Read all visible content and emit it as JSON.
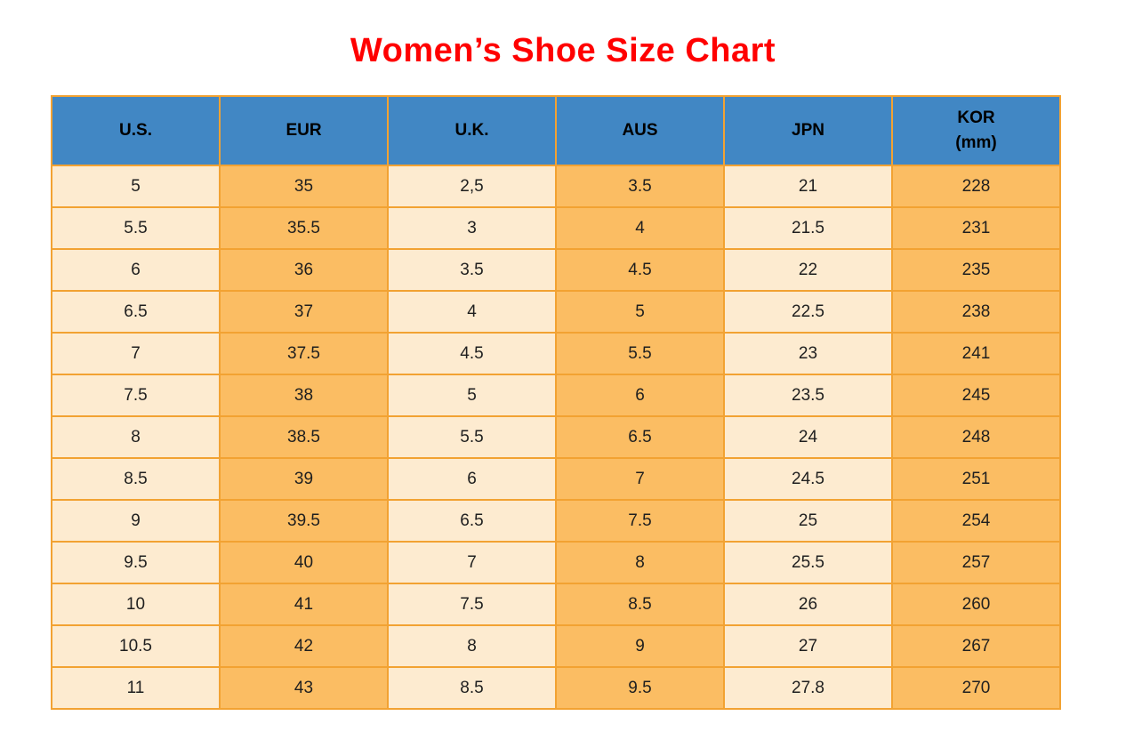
{
  "title": "Women’s Shoe Size Chart",
  "colors": {
    "title": "#ff0000",
    "header_bg": "#4187c4",
    "header_text": "#000000",
    "column_light": "#fdebd0",
    "column_dark": "#fbbd63",
    "grid_border": "#f2a232",
    "cell_text": "#1f1f1f",
    "page_bg": "#ffffff"
  },
  "table": {
    "headers": [
      {
        "label": "U.S.",
        "sub": ""
      },
      {
        "label": "EUR",
        "sub": ""
      },
      {
        "label": "U.K.",
        "sub": ""
      },
      {
        "label": "AUS",
        "sub": ""
      },
      {
        "label": "JPN",
        "sub": ""
      },
      {
        "label": "KOR",
        "sub": "(mm)"
      }
    ],
    "rows": [
      [
        "5",
        "35",
        "2,5",
        "3.5",
        "21",
        "228"
      ],
      [
        "5.5",
        "35.5",
        "3",
        "4",
        "21.5",
        "231"
      ],
      [
        "6",
        "36",
        "3.5",
        "4.5",
        "22",
        "235"
      ],
      [
        "6.5",
        "37",
        "4",
        "5",
        "22.5",
        "238"
      ],
      [
        "7",
        "37.5",
        "4.5",
        "5.5",
        "23",
        "241"
      ],
      [
        "7.5",
        "38",
        "5",
        "6",
        "23.5",
        "245"
      ],
      [
        "8",
        "38.5",
        "5.5",
        "6.5",
        "24",
        "248"
      ],
      [
        "8.5",
        "39",
        "6",
        "7",
        "24.5",
        "251"
      ],
      [
        "9",
        "39.5",
        "6.5",
        "7.5",
        "25",
        "254"
      ],
      [
        "9.5",
        "40",
        "7",
        "8",
        "25.5",
        "257"
      ],
      [
        "10",
        "41",
        "7.5",
        "8.5",
        "26",
        "260"
      ],
      [
        "10.5",
        "42",
        "8",
        "9",
        "27",
        "267"
      ],
      [
        "11",
        "43",
        "8.5",
        "9.5",
        "27.8",
        "270"
      ]
    ]
  },
  "chart_data": {
    "type": "table",
    "title": "Women’s Shoe Size Chart",
    "columns": [
      "U.S.",
      "EUR",
      "U.K.",
      "AUS",
      "JPN",
      "KOR (mm)"
    ],
    "rows": [
      [
        "5",
        "35",
        "2,5",
        "3.5",
        "21",
        "228"
      ],
      [
        "5.5",
        "35.5",
        "3",
        "4",
        "21.5",
        "231"
      ],
      [
        "6",
        "36",
        "3.5",
        "4.5",
        "22",
        "235"
      ],
      [
        "6.5",
        "37",
        "4",
        "5",
        "22.5",
        "238"
      ],
      [
        "7",
        "37.5",
        "4.5",
        "5.5",
        "23",
        "241"
      ],
      [
        "7.5",
        "38",
        "5",
        "6",
        "23.5",
        "245"
      ],
      [
        "8",
        "38.5",
        "5.5",
        "6.5",
        "24",
        "248"
      ],
      [
        "8.5",
        "39",
        "6",
        "7",
        "24.5",
        "251"
      ],
      [
        "9",
        "39.5",
        "6.5",
        "7.5",
        "25",
        "254"
      ],
      [
        "9.5",
        "40",
        "7",
        "8",
        "25.5",
        "257"
      ],
      [
        "10",
        "41",
        "7.5",
        "8.5",
        "26",
        "260"
      ],
      [
        "10.5",
        "42",
        "8",
        "9",
        "27",
        "267"
      ],
      [
        "11",
        "43",
        "8.5",
        "9.5",
        "27.8",
        "270"
      ]
    ],
    "layout": {
      "grid": true,
      "header_fill": "#4187c4",
      "alternating_column_fills": [
        "#fdebd0",
        "#fbbd63"
      ]
    }
  }
}
